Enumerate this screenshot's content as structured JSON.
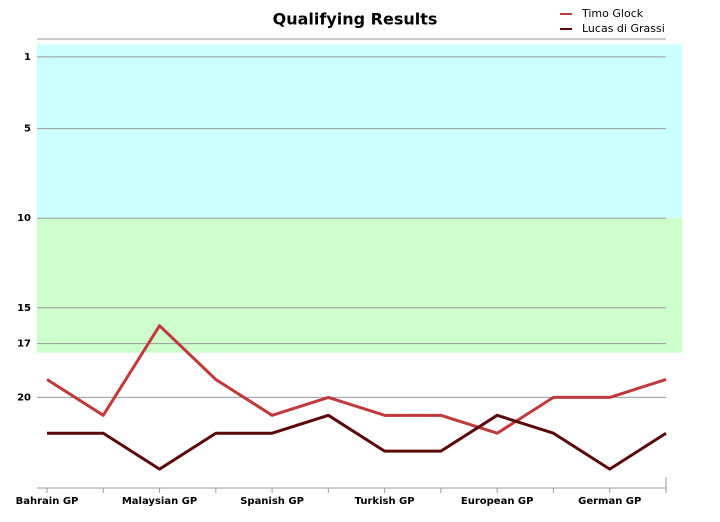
{
  "chart_data": {
    "type": "line",
    "title": "Qualifying Results",
    "categories": [
      "Bahrain GP",
      null,
      "Malaysian GP",
      null,
      "Spanish GP",
      null,
      "Turkish GP",
      null,
      "European GP",
      null,
      "German GP",
      null
    ],
    "series": [
      {
        "name": "Timo Glock",
        "color": "#c0393b",
        "values": [
          19,
          21,
          16,
          19,
          21,
          20,
          21,
          21,
          22,
          20,
          20,
          19
        ]
      },
      {
        "name": "Lucas di Grassi",
        "color": "#5a0a0a",
        "values": [
          22,
          22,
          24,
          22,
          22,
          21,
          23,
          23,
          21,
          22,
          24,
          22
        ]
      }
    ],
    "ylim": [
      0,
      25
    ],
    "y_inverted": true,
    "yticks": [
      1,
      5,
      10,
      15,
      17,
      20
    ],
    "grid": true,
    "bands": [
      {
        "from": 0.3,
        "to": 10,
        "color": "#ccffff"
      },
      {
        "from": 10,
        "to": 17.5,
        "color": "#ccffcc"
      }
    ],
    "legend": "top-right"
  }
}
